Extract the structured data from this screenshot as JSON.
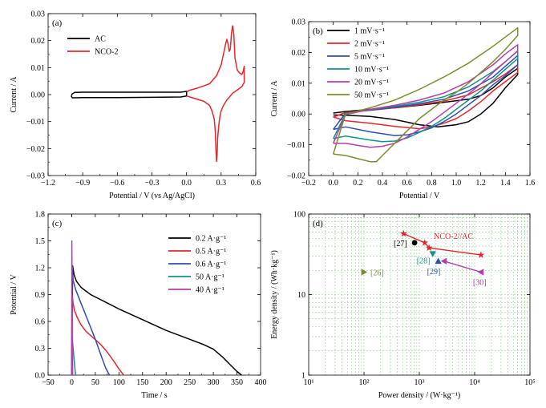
{
  "chart_data": [
    {
      "panel": "(a)",
      "type": "line",
      "xlabel": "Potential / V (vs Ag/AgCl)",
      "ylabel": "Current / A",
      "xlim": [
        -1.2,
        0.6
      ],
      "ylim": [
        -0.03,
        0.03
      ],
      "xticks": [
        -1.2,
        -0.9,
        -0.6,
        -0.3,
        0.0,
        0.3,
        0.6
      ],
      "xtick_labels": [
        "−1.2",
        "−0.9",
        "−0.6",
        "−0.3",
        "0.0",
        "0.3",
        "0.6"
      ],
      "yticks": [
        -0.03,
        -0.02,
        -0.01,
        0.0,
        0.01,
        0.02,
        0.03
      ],
      "ytick_labels": [
        "−0.03",
        "−0.02",
        "−0.01",
        "0.00",
        "0.01",
        "0.02",
        "0.03"
      ],
      "legend_position": "top-left",
      "series": [
        {
          "name": "AC",
          "color": "#000000",
          "x": [
            -1.0,
            -0.99,
            -0.97,
            -0.9,
            -0.6,
            -0.3,
            -0.05,
            0.0,
            0.0,
            -0.05,
            -0.3,
            -0.6,
            -0.9,
            -0.97,
            -0.99,
            -1.0
          ],
          "y": [
            -0.0005,
            0.0003,
            0.0008,
            0.0009,
            0.0009,
            0.0009,
            0.0009,
            0.0012,
            -0.0005,
            -0.0009,
            -0.001,
            -0.0011,
            -0.0011,
            -0.0012,
            -0.0012,
            -0.0005
          ]
        },
        {
          "name": "NCO-2",
          "color": "#e8262b",
          "x": [
            0.0,
            0.02,
            0.1,
            0.2,
            0.26,
            0.3,
            0.32,
            0.34,
            0.35,
            0.36,
            0.37,
            0.38,
            0.39,
            0.4,
            0.41,
            0.42,
            0.44,
            0.46,
            0.48,
            0.49,
            0.5,
            0.5,
            0.48,
            0.45,
            0.4,
            0.35,
            0.32,
            0.3,
            0.29,
            0.28,
            0.27,
            0.265,
            0.26,
            0.255,
            0.25,
            0.24,
            0.22,
            0.2,
            0.15,
            0.1,
            0.05,
            0.0
          ],
          "y": [
            0.0008,
            0.0015,
            0.0025,
            0.004,
            0.007,
            0.011,
            0.015,
            0.019,
            0.0205,
            0.0185,
            0.016,
            0.017,
            0.023,
            0.0255,
            0.022,
            0.0135,
            0.009,
            0.008,
            0.0075,
            0.0085,
            0.0105,
            0.0045,
            0.003,
            0.002,
            0.0005,
            -0.002,
            -0.004,
            -0.006,
            -0.008,
            -0.011,
            -0.016,
            -0.022,
            -0.0248,
            -0.021,
            -0.014,
            -0.009,
            -0.006,
            -0.004,
            -0.0025,
            -0.0018,
            -0.0012,
            -0.0005
          ]
        }
      ]
    },
    {
      "panel": "(b)",
      "type": "line",
      "xlabel": "Potential / V",
      "ylabel": "Current / A",
      "xlim": [
        -0.2,
        1.6
      ],
      "ylim": [
        -0.02,
        0.03
      ],
      "xticks": [
        -0.2,
        0.0,
        0.2,
        0.4,
        0.6,
        0.8,
        1.0,
        1.2,
        1.4,
        1.6
      ],
      "xtick_labels": [
        "−0.2",
        "0.0",
        "0.2",
        "0.4",
        "0.6",
        "0.8",
        "1.0",
        "1.2",
        "1.4",
        "1.6"
      ],
      "yticks": [
        -0.02,
        -0.01,
        0.0,
        0.01,
        0.02,
        0.03
      ],
      "ytick_labels": [
        "−0.02",
        "−0.01",
        "0.00",
        "0.01",
        "0.02",
        "0.03"
      ],
      "legend_position": "top-left",
      "series": [
        {
          "name": "1 mV·s⁻¹",
          "color": "#000000",
          "x": [
            0.0,
            0.1,
            0.3,
            0.5,
            0.7,
            0.9,
            1.1,
            1.2,
            1.3,
            1.4,
            1.5,
            1.5,
            1.4,
            1.3,
            1.2,
            1.1,
            1.0,
            0.85,
            0.7,
            0.5,
            0.3,
            0.1,
            0.0
          ],
          "y": [
            0.0003,
            0.0008,
            0.0015,
            0.002,
            0.0028,
            0.0038,
            0.0048,
            0.006,
            0.0085,
            0.012,
            0.0148,
            0.0128,
            0.0085,
            0.0035,
            0.0,
            -0.0025,
            -0.0035,
            -0.0042,
            -0.0035,
            -0.0018,
            -0.0008,
            -0.0004,
            -0.0003
          ]
        },
        {
          "name": "2 mV·s⁻¹",
          "color": "#e8262b",
          "x": [
            0.0,
            0.1,
            0.3,
            0.5,
            0.7,
            0.9,
            1.1,
            1.3,
            1.4,
            1.5,
            1.5,
            1.4,
            1.3,
            1.2,
            1.1,
            1.0,
            0.9,
            0.8,
            0.7,
            0.5,
            0.3,
            0.1,
            0.0
          ],
          "y": [
            -0.001,
            0.0005,
            0.0012,
            0.002,
            0.003,
            0.0042,
            0.0062,
            0.0105,
            0.013,
            0.016,
            0.0135,
            0.0105,
            0.0075,
            0.004,
            0.001,
            -0.0015,
            -0.003,
            -0.0042,
            -0.0048,
            -0.004,
            -0.003,
            -0.0022,
            -0.001
          ]
        },
        {
          "name": "5 mV·s⁻¹",
          "color": "#2b4eb0",
          "x": [
            0.0,
            0.1,
            0.3,
            0.5,
            0.7,
            0.9,
            1.1,
            1.3,
            1.4,
            1.5,
            1.5,
            1.4,
            1.3,
            1.2,
            1.1,
            1.0,
            0.9,
            0.8,
            0.7,
            0.6,
            0.5,
            0.3,
            0.1,
            0.0
          ],
          "y": [
            -0.005,
            0.0003,
            0.0013,
            0.0022,
            0.0033,
            0.0048,
            0.0075,
            0.012,
            0.0155,
            0.019,
            0.016,
            0.0125,
            0.0095,
            0.006,
            0.003,
            0.0,
            -0.0025,
            -0.0045,
            -0.0058,
            -0.0068,
            -0.007,
            -0.0058,
            -0.0042,
            -0.005
          ]
        },
        {
          "name": "10 mV·s⁻¹",
          "color": "#12918c",
          "x": [
            0.0,
            0.1,
            0.3,
            0.5,
            0.7,
            0.9,
            1.1,
            1.3,
            1.4,
            1.5,
            1.5,
            1.4,
            1.3,
            1.2,
            1.1,
            1.0,
            0.9,
            0.8,
            0.7,
            0.6,
            0.5,
            0.4,
            0.3,
            0.1,
            0.0
          ],
          "y": [
            -0.008,
            0.0001,
            0.0014,
            0.0025,
            0.0038,
            0.0056,
            0.0088,
            0.0138,
            0.017,
            0.0205,
            0.018,
            0.0145,
            0.011,
            0.0075,
            0.0045,
            0.0015,
            -0.0015,
            -0.004,
            -0.006,
            -0.0078,
            -0.0088,
            -0.009,
            -0.0085,
            -0.0072,
            -0.008
          ]
        },
        {
          "name": "20 mV·s⁻¹",
          "color": "#b63cae",
          "x": [
            0.0,
            0.1,
            0.3,
            0.5,
            0.7,
            0.9,
            1.1,
            1.3,
            1.4,
            1.5,
            1.5,
            1.4,
            1.3,
            1.2,
            1.1,
            1.0,
            0.9,
            0.8,
            0.7,
            0.6,
            0.5,
            0.4,
            0.3,
            0.2,
            0.1,
            0.0
          ],
          "y": [
            -0.0095,
            -0.0002,
            0.0015,
            0.0028,
            0.0045,
            0.0068,
            0.0105,
            0.016,
            0.0195,
            0.0225,
            0.0205,
            0.017,
            0.0135,
            0.0098,
            0.0065,
            0.0035,
            0.0005,
            -0.0025,
            -0.005,
            -0.0075,
            -0.0095,
            -0.0105,
            -0.0108,
            -0.0102,
            -0.0095,
            -0.0095
          ]
        },
        {
          "name": "50 mV·s⁻¹",
          "color": "#7e8c2e",
          "x": [
            0.0,
            0.1,
            0.3,
            0.5,
            0.7,
            0.9,
            1.1,
            1.3,
            1.4,
            1.5,
            1.5,
            1.4,
            1.3,
            1.2,
            1.1,
            1.0,
            0.9,
            0.8,
            0.7,
            0.6,
            0.5,
            0.4,
            0.35,
            0.3,
            0.2,
            0.1,
            0.0
          ],
          "y": [
            -0.013,
            0.0,
            0.002,
            0.0045,
            0.008,
            0.012,
            0.0165,
            0.022,
            0.025,
            0.028,
            0.0255,
            0.021,
            0.017,
            0.0135,
            0.01,
            0.007,
            0.0045,
            0.0015,
            -0.0015,
            -0.0055,
            -0.0095,
            -0.0135,
            -0.0155,
            -0.0155,
            -0.0145,
            -0.0135,
            -0.013
          ]
        }
      ]
    },
    {
      "panel": "(c)",
      "type": "line",
      "xlabel": "Time / s",
      "ylabel": "Potential / V",
      "xlim": [
        -50,
        400
      ],
      "ylim": [
        0.0,
        1.8
      ],
      "xticks": [
        -50,
        0,
        50,
        100,
        150,
        200,
        250,
        300,
        350,
        400
      ],
      "xtick_labels": [
        "−50",
        "0",
        "50",
        "100",
        "150",
        "200",
        "250",
        "300",
        "350",
        "400"
      ],
      "yticks": [
        0.0,
        0.3,
        0.6,
        0.9,
        1.2,
        1.5,
        1.8
      ],
      "ytick_labels": [
        "0.0",
        "0.3",
        "0.6",
        "0.9",
        "1.2",
        "1.5",
        "1.8"
      ],
      "legend_position": "top-right",
      "series": [
        {
          "name": "0.2 A·g⁻¹",
          "color": "#000000",
          "x": [
            0,
            2,
            5,
            10,
            20,
            40,
            70,
            100,
            150,
            200,
            250,
            280,
            300,
            320,
            335,
            350,
            360
          ],
          "y": [
            0.0,
            1.22,
            1.12,
            1.05,
            0.98,
            0.9,
            0.82,
            0.74,
            0.62,
            0.5,
            0.4,
            0.34,
            0.29,
            0.2,
            0.12,
            0.04,
            0.0
          ]
        },
        {
          "name": "0.5 A·g⁻¹",
          "color": "#e8262b",
          "x": [
            0,
            1,
            3,
            6,
            12,
            20,
            30,
            45,
            60,
            75,
            90,
            100,
            110
          ],
          "y": [
            0.0,
            0.9,
            0.8,
            0.72,
            0.64,
            0.56,
            0.49,
            0.42,
            0.35,
            0.26,
            0.15,
            0.07,
            0.0
          ]
        },
        {
          "name": "0.6 A·g⁻¹",
          "color": "#2b4eb0",
          "x": [
            0,
            1,
            3,
            8,
            20,
            35,
            50,
            62,
            72,
            80
          ],
          "y": [
            0.0,
            1.23,
            1.06,
            0.96,
            0.8,
            0.6,
            0.4,
            0.22,
            0.08,
            0.0
          ]
        },
        {
          "name": "50 A·g⁻¹",
          "color": "#12918c",
          "x": [
            0,
            1,
            3,
            5,
            7,
            8
          ],
          "y": [
            0.0,
            0.42,
            0.3,
            0.18,
            0.06,
            0.0
          ]
        },
        {
          "name": "40 A·g⁻¹",
          "color": "#b63cae",
          "x": [
            0,
            0.2,
            0.6,
            1,
            1.5,
            2
          ],
          "y": [
            0.0,
            1.5,
            1.1,
            0.7,
            0.3,
            0.0
          ]
        }
      ]
    },
    {
      "panel": "(d)",
      "type": "scatter",
      "xlabel": "Power density / (W·kg⁻¹)",
      "ylabel": "Energy density / (Wh·kg⁻¹)",
      "x_scale": "log",
      "y_scale": "log",
      "xlim": [
        10,
        100000
      ],
      "ylim": [
        1,
        100
      ],
      "xticks": [
        10,
        100,
        1000,
        10000,
        100000
      ],
      "xtick_labels": [
        "10¹",
        "10²",
        "10³",
        "10⁴",
        "10⁵"
      ],
      "yticks": [
        1,
        10,
        100
      ],
      "ytick_labels": [
        "1",
        "10",
        "100"
      ],
      "grid": true,
      "series": [
        {
          "name": "NCO-2//AC",
          "color": "#e8262b",
          "marker": "star",
          "connected": true,
          "x": [
            520,
            1250,
            1500,
            13000
          ],
          "y": [
            57,
            44,
            38,
            31
          ]
        }
      ],
      "points": [
        {
          "label": "[27]",
          "color": "#000000",
          "marker": "circle",
          "x": 820,
          "y": 44
        },
        {
          "label": "[28]",
          "color": "#12918c",
          "marker": "triangle-down",
          "x": 1750,
          "y": 32
        },
        {
          "label": "[29]",
          "color": "#2b4eb0",
          "marker": "triangle-up",
          "x": 2200,
          "y": 26
        },
        {
          "label": "[26]",
          "color": "#7e8c2e",
          "marker": "triangle-right",
          "x": 100,
          "y": 19
        }
      ],
      "segments": [
        {
          "label": "[30]",
          "color": "#b63cae",
          "x": [
            2800,
            13000
          ],
          "y": [
            26,
            19
          ]
        }
      ]
    }
  ]
}
